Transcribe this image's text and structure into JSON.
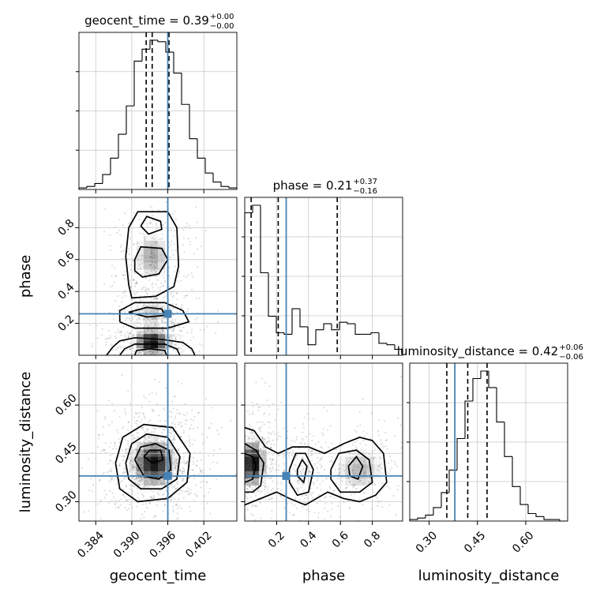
{
  "chart_data": {
    "type": "corner",
    "parameters": [
      "geocent_time",
      "phase",
      "luminosity_distance"
    ],
    "truths": {
      "geocent_time": 0.396,
      "phase": 0.26,
      "luminosity_distance": 0.38
    },
    "ranges": {
      "geocent_time": [
        0.3812,
        0.4075
      ],
      "phase": [
        0.0,
        0.99
      ],
      "luminosity_distance": [
        0.24,
        0.73
      ]
    },
    "grid": true,
    "titles": [
      {
        "param": "geocent_time",
        "label": "geocent_time",
        "median": "0.39",
        "plus": "+0.00",
        "minus": "−0.00"
      },
      {
        "param": "phase",
        "label": "phase",
        "median": "0.21",
        "plus": "+0.37",
        "minus": "−0.16"
      },
      {
        "param": "luminosity_distance",
        "label": "luminosity_distance",
        "median": "0.42",
        "plus": "+0.06",
        "minus": "−0.06"
      }
    ],
    "quantiles": {
      "geocent_time": [
        0.3924,
        0.3934,
        0.3962
      ],
      "phase": [
        0.04,
        0.21,
        0.58
      ],
      "luminosity_distance": [
        0.355,
        0.42,
        0.48
      ]
    },
    "ticks": {
      "geocent_time": [
        "0.384",
        "0.390",
        "0.396",
        "0.402"
      ],
      "phase": [
        "0.2",
        "0.4",
        "0.6",
        "0.8"
      ],
      "luminosity_distance": [
        "0.30",
        "0.45",
        "0.60"
      ]
    },
    "histograms": {
      "geocent_time": {
        "range": [
          0.3812,
          0.4075
        ],
        "counts": [
          0.01,
          0.02,
          0.04,
          0.1,
          0.21,
          0.37,
          0.56,
          0.86,
          0.94,
          1.0,
          0.99,
          0.92,
          0.78,
          0.57,
          0.34,
          0.21,
          0.11,
          0.05,
          0.02,
          0.01
        ]
      },
      "phase": {
        "range": [
          0.0,
          0.99
        ],
        "counts": [
          0.95,
          1.0,
          0.55,
          0.26,
          0.15,
          0.14,
          0.31,
          0.19,
          0.07,
          0.17,
          0.21,
          0.17,
          0.22,
          0.21,
          0.14,
          0.14,
          0.15,
          0.08,
          0.07,
          0.04
        ]
      },
      "luminosity_distance": {
        "range": [
          0.24,
          0.73
        ],
        "counts": [
          0.01,
          0.02,
          0.04,
          0.09,
          0.19,
          0.34,
          0.55,
          0.8,
          0.95,
          1.0,
          0.89,
          0.66,
          0.43,
          0.23,
          0.11,
          0.05,
          0.03,
          0.01,
          0.01,
          0.0
        ]
      }
    },
    "pairs": [
      {
        "x": "geocent_time",
        "y": "phase"
      },
      {
        "x": "geocent_time",
        "y": "luminosity_distance"
      },
      {
        "x": "phase",
        "y": "luminosity_distance"
      }
    ]
  }
}
